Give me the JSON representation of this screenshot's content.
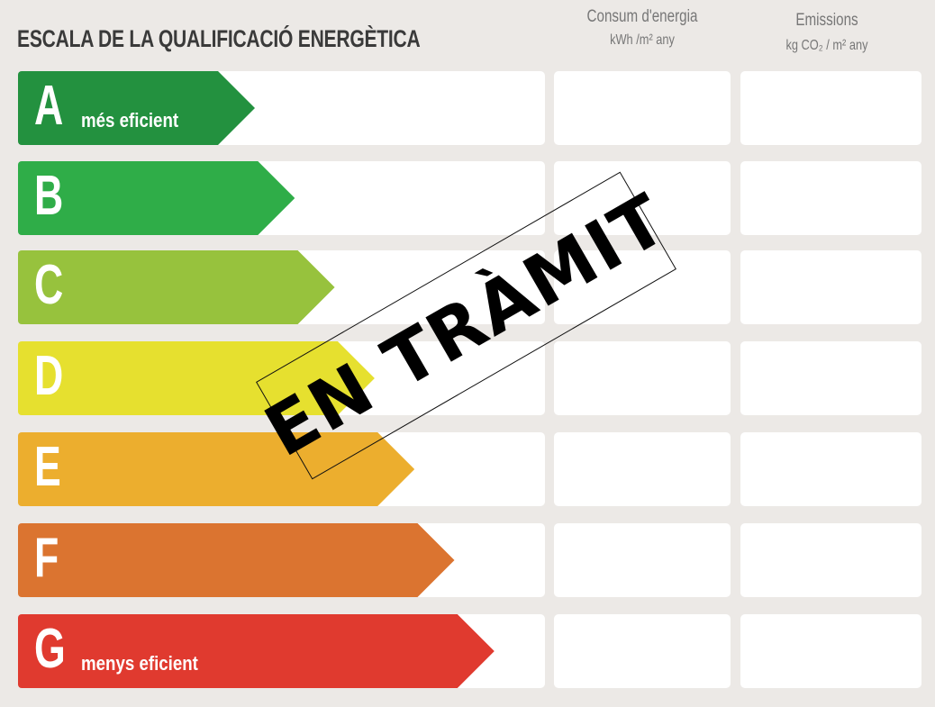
{
  "header": {
    "title": "ESCALA DE LA QUALIFICACIÓ ENERGÈTICA",
    "consumption": {
      "label": "Consum d'energia",
      "unit": "kWh /m² any"
    },
    "emissions": {
      "label": "Emissions",
      "unit": "kg CO₂ / m² any"
    }
  },
  "ratings": [
    {
      "letter": "A",
      "description": "més eficient",
      "color": "#23913f"
    },
    {
      "letter": "B",
      "description": "",
      "color": "#2fad48"
    },
    {
      "letter": "C",
      "description": "",
      "color": "#97c23d"
    },
    {
      "letter": "D",
      "description": "",
      "color": "#e6e02f"
    },
    {
      "letter": "E",
      "description": "",
      "color": "#ecae2e"
    },
    {
      "letter": "F",
      "description": "",
      "color": "#db7430"
    },
    {
      "letter": "G",
      "description": "menys eficient",
      "color": "#e03a2f"
    }
  ],
  "stamp": {
    "text": "EN TRÀMIT"
  }
}
